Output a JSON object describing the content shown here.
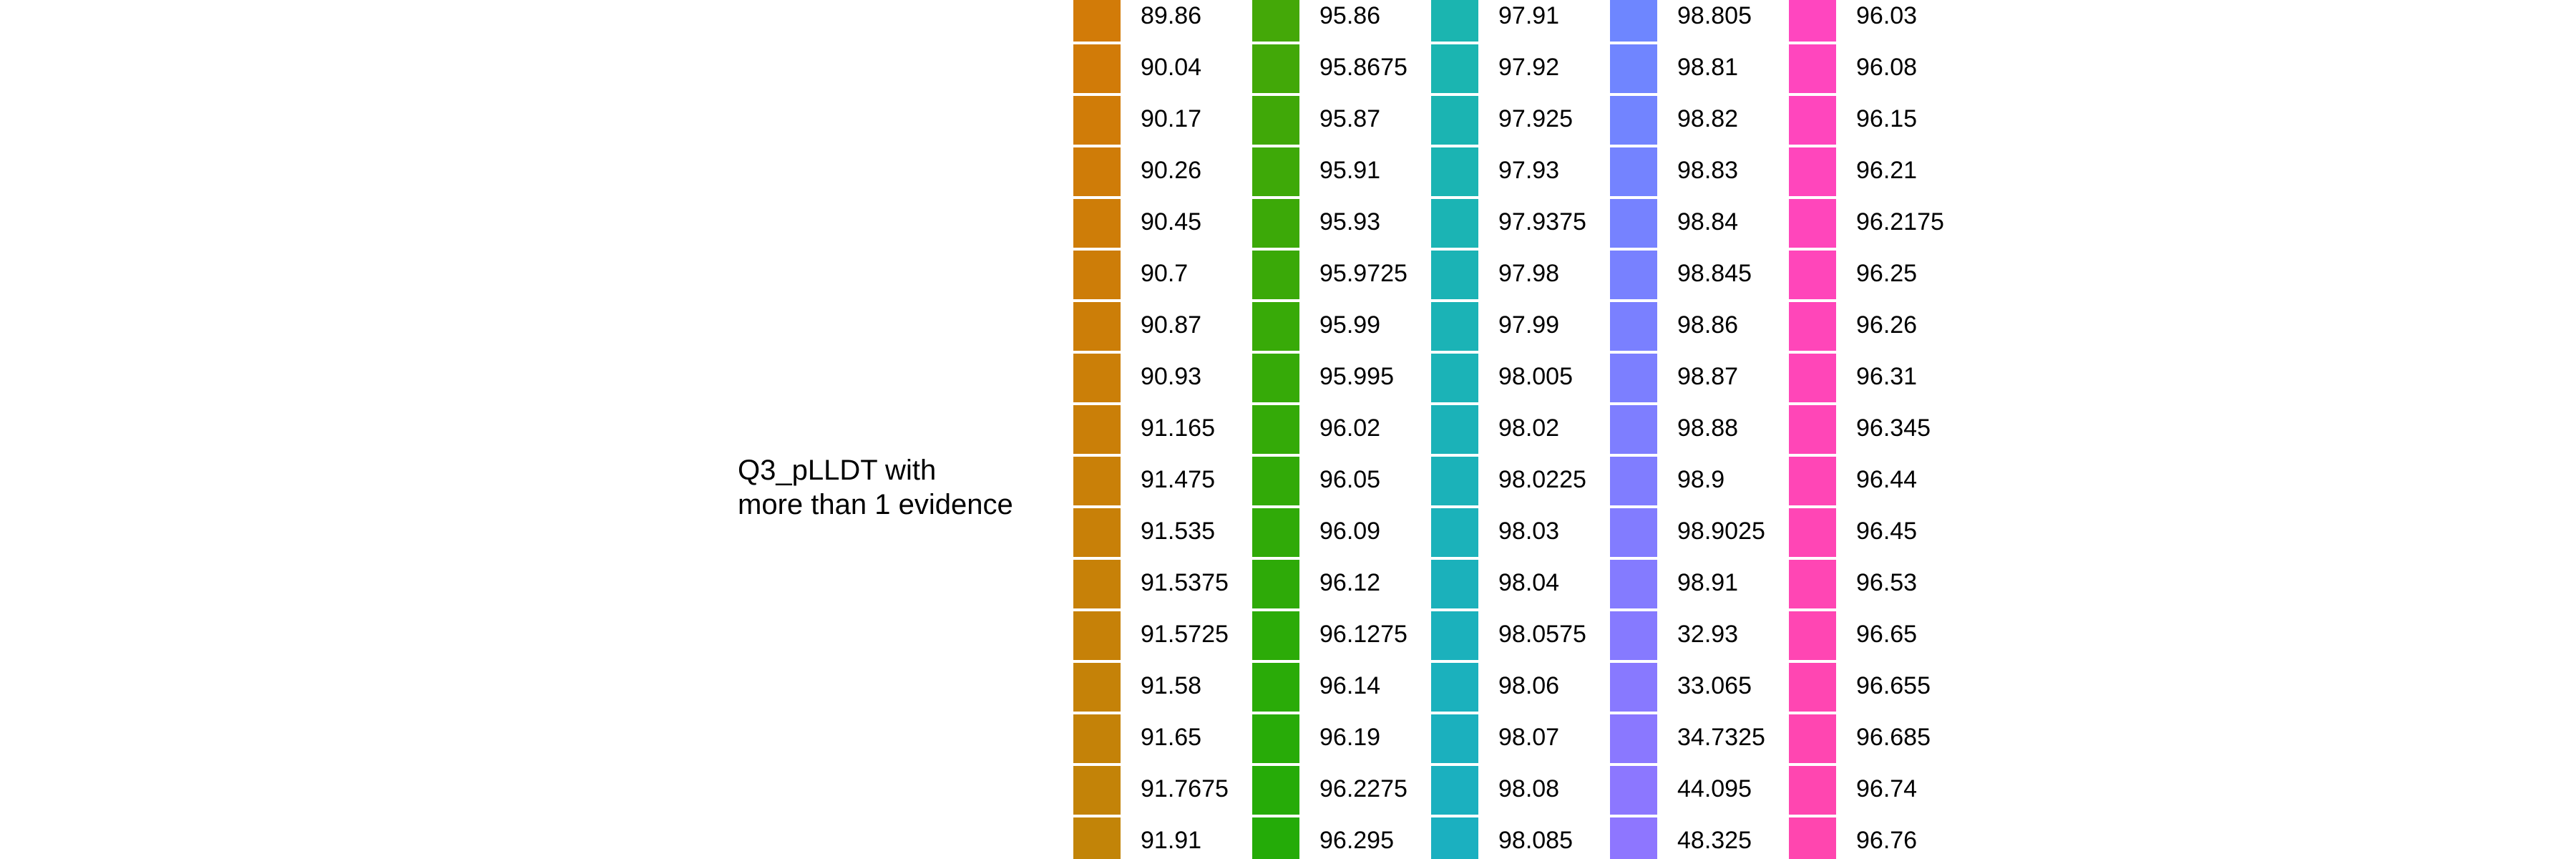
{
  "chart_data": {
    "type": "legend",
    "title_lines": [
      "Q3_pLLDT with",
      "more than 1 evidence"
    ],
    "columns": [
      {
        "entries": [
          {
            "label": "89.86",
            "color": "#D27B08"
          },
          {
            "label": "90.04",
            "color": "#D17B08"
          },
          {
            "label": "90.17",
            "color": "#D07C08"
          },
          {
            "label": "90.26",
            "color": "#CF7C08"
          },
          {
            "label": "90.45",
            "color": "#CE7D08"
          },
          {
            "label": "90.7",
            "color": "#CD7D08"
          },
          {
            "label": "90.87",
            "color": "#CC7E08"
          },
          {
            "label": "90.93",
            "color": "#CB7F08"
          },
          {
            "label": "91.165",
            "color": "#CA7F08"
          },
          {
            "label": "91.475",
            "color": "#C98008"
          },
          {
            "label": "91.535",
            "color": "#C88008"
          },
          {
            "label": "91.5375",
            "color": "#C78108"
          },
          {
            "label": "91.5725",
            "color": "#C68108"
          },
          {
            "label": "91.58",
            "color": "#C58208"
          },
          {
            "label": "91.65",
            "color": "#C48208"
          },
          {
            "label": "91.7675",
            "color": "#C38308"
          },
          {
            "label": "91.91",
            "color": "#C28408"
          }
        ]
      },
      {
        "entries": [
          {
            "label": "95.86",
            "color": "#44A808"
          },
          {
            "label": "95.8675",
            "color": "#42A808"
          },
          {
            "label": "95.87",
            "color": "#40A808"
          },
          {
            "label": "95.91",
            "color": "#3EA908"
          },
          {
            "label": "95.93",
            "color": "#3CA908"
          },
          {
            "label": "95.9725",
            "color": "#3AA908"
          },
          {
            "label": "95.99",
            "color": "#38AA08"
          },
          {
            "label": "95.995",
            "color": "#36AA08"
          },
          {
            "label": "96.02",
            "color": "#34AA08"
          },
          {
            "label": "96.05",
            "color": "#32AA08"
          },
          {
            "label": "96.09",
            "color": "#30AA08"
          },
          {
            "label": "96.12",
            "color": "#2EAA08"
          },
          {
            "label": "96.1275",
            "color": "#2CAB08"
          },
          {
            "label": "96.14",
            "color": "#2AAB08"
          },
          {
            "label": "96.19",
            "color": "#28AB08"
          },
          {
            "label": "96.2275",
            "color": "#26AB08"
          },
          {
            "label": "96.295",
            "color": "#24AB08"
          }
        ]
      },
      {
        "entries": [
          {
            "label": "97.91",
            "color": "#1BB5B0"
          },
          {
            "label": "97.92",
            "color": "#1BB5B1"
          },
          {
            "label": "97.925",
            "color": "#1BB4B2"
          },
          {
            "label": "97.93",
            "color": "#1BB4B3"
          },
          {
            "label": "97.9375",
            "color": "#1BB4B4"
          },
          {
            "label": "97.98",
            "color": "#1BB3B5"
          },
          {
            "label": "97.99",
            "color": "#1BB3B6"
          },
          {
            "label": "98.005",
            "color": "#1BB3B7"
          },
          {
            "label": "98.02",
            "color": "#1BB2B8"
          },
          {
            "label": "98.0225",
            "color": "#1BB2B9"
          },
          {
            "label": "98.03",
            "color": "#1BB2BA"
          },
          {
            "label": "98.04",
            "color": "#1BB1BB"
          },
          {
            "label": "98.0575",
            "color": "#1BB1BC"
          },
          {
            "label": "98.06",
            "color": "#1BB1BD"
          },
          {
            "label": "98.07",
            "color": "#1BB0BE"
          },
          {
            "label": "98.08",
            "color": "#1BB0BF"
          },
          {
            "label": "98.085",
            "color": "#1BB0C0"
          }
        ]
      },
      {
        "entries": [
          {
            "label": "98.805",
            "color": "#6E86FF"
          },
          {
            "label": "98.81",
            "color": "#7085FF"
          },
          {
            "label": "98.82",
            "color": "#7284FF"
          },
          {
            "label": "98.83",
            "color": "#7483FF"
          },
          {
            "label": "98.84",
            "color": "#7682FF"
          },
          {
            "label": "98.845",
            "color": "#7881FF"
          },
          {
            "label": "98.86",
            "color": "#7A80FF"
          },
          {
            "label": "98.87",
            "color": "#7C7FFF"
          },
          {
            "label": "98.88",
            "color": "#7E7EFF"
          },
          {
            "label": "98.9",
            "color": "#807DFF"
          },
          {
            "label": "98.9025",
            "color": "#827CFF"
          },
          {
            "label": "98.91",
            "color": "#847BFF"
          },
          {
            "label": "32.93",
            "color": "#867AFF"
          },
          {
            "label": "33.065",
            "color": "#8879FF"
          },
          {
            "label": "34.7325",
            "color": "#8A78FF"
          },
          {
            "label": "44.095",
            "color": "#8C77FF"
          },
          {
            "label": "48.325",
            "color": "#8E76FF"
          }
        ]
      },
      {
        "entries": [
          {
            "label": "96.03",
            "color": "#FF46BF"
          },
          {
            "label": "96.08",
            "color": "#FF46BE"
          },
          {
            "label": "96.15",
            "color": "#FF46BD"
          },
          {
            "label": "96.21",
            "color": "#FF46BC"
          },
          {
            "label": "96.2175",
            "color": "#FF46BB"
          },
          {
            "label": "96.25",
            "color": "#FF46BA"
          },
          {
            "label": "96.26",
            "color": "#FF46B9"
          },
          {
            "label": "96.31",
            "color": "#FF46B8"
          },
          {
            "label": "96.345",
            "color": "#FF46B7"
          },
          {
            "label": "96.44",
            "color": "#FF46B6"
          },
          {
            "label": "96.45",
            "color": "#FF46B5"
          },
          {
            "label": "96.53",
            "color": "#FF46B4"
          },
          {
            "label": "96.65",
            "color": "#FF46B3"
          },
          {
            "label": "96.655",
            "color": "#FF46B2"
          },
          {
            "label": "96.685",
            "color": "#FF46B1"
          },
          {
            "label": "96.74",
            "color": "#FF46B0"
          },
          {
            "label": "96.76",
            "color": "#FF46AF"
          }
        ]
      }
    ]
  }
}
